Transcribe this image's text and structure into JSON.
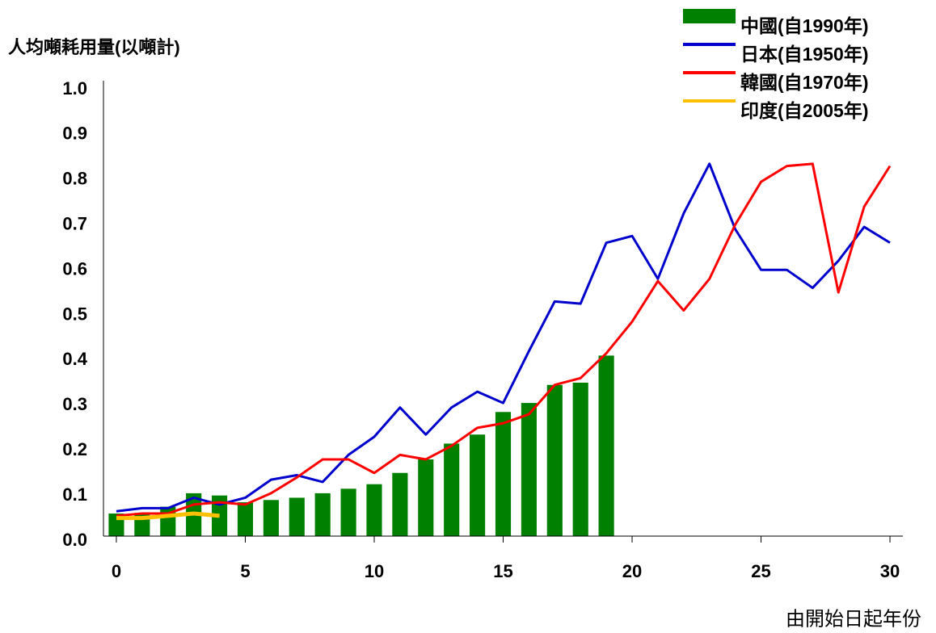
{
  "chart_data": {
    "type": "bar_line",
    "y_label": "人均噸耗用量(以噸計)",
    "x_label": "由開始日起年份",
    "x": [
      0,
      1,
      2,
      3,
      4,
      5,
      6,
      7,
      8,
      9,
      10,
      11,
      12,
      13,
      14,
      15,
      16,
      17,
      18,
      19,
      20,
      21,
      22,
      23,
      24,
      25,
      26,
      27,
      28,
      29,
      30
    ],
    "series": [
      {
        "name": "中國(自1990年)",
        "color": "#008000",
        "kind": "bar",
        "values": [
          0.05,
          0.05,
          0.065,
          0.095,
          0.09,
          0.075,
          0.08,
          0.085,
          0.095,
          0.105,
          0.115,
          0.14,
          0.17,
          0.205,
          0.225,
          0.275,
          0.295,
          0.335,
          0.34,
          0.4,
          null,
          null,
          null,
          null,
          null,
          null,
          null,
          null,
          null,
          null,
          null
        ]
      },
      {
        "name": "日本(自1950年)",
        "color": "#0000cc",
        "kind": "line",
        "values": [
          0.055,
          0.062,
          0.062,
          0.085,
          0.07,
          0.085,
          0.125,
          0.135,
          0.12,
          0.18,
          0.22,
          0.285,
          0.225,
          0.285,
          0.32,
          0.295,
          0.41,
          0.52,
          0.515,
          0.65,
          0.665,
          0.57,
          0.715,
          0.825,
          0.68,
          0.59,
          0.59,
          0.55,
          0.61,
          0.685,
          0.65
        ]
      },
      {
        "name": "韓國(自1970年)",
        "color": "#ff0000",
        "kind": "line",
        "values": [
          0.045,
          0.05,
          0.05,
          0.07,
          0.075,
          0.07,
          0.095,
          0.13,
          0.17,
          0.17,
          0.14,
          0.18,
          0.17,
          0.2,
          0.24,
          0.25,
          0.27,
          0.335,
          0.35,
          0.405,
          0.475,
          0.565,
          0.5,
          0.57,
          0.69,
          0.785,
          0.82,
          0.825,
          0.54,
          0.73,
          0.82
        ]
      },
      {
        "name": "印度(自2005年)",
        "color": "#ffc000",
        "kind": "line",
        "values": [
          0.04,
          0.04,
          0.045,
          0.05,
          0.045,
          null,
          null,
          null,
          null,
          null,
          null,
          null,
          null,
          null,
          null,
          null,
          null,
          null,
          null,
          null,
          null,
          null,
          null,
          null,
          null,
          null,
          null,
          null,
          null,
          null,
          null
        ]
      }
    ],
    "xlim": [
      -0.5,
      30.5
    ],
    "xticks": [
      0,
      5,
      10,
      15,
      20,
      25,
      30
    ],
    "ylim": [
      0,
      1
    ],
    "yticks": [
      {
        "value": 0,
        "label": "0.0"
      },
      {
        "value": 0.1,
        "label": "0.1"
      },
      {
        "value": 0.2,
        "label": "0.2"
      },
      {
        "value": 0.3,
        "label": "0.3"
      },
      {
        "value": 0.4,
        "label": "0.4"
      },
      {
        "value": 0.5,
        "label": "0.5"
      },
      {
        "value": 0.6,
        "label": "0.6"
      },
      {
        "value": 0.7,
        "label": "0.7"
      },
      {
        "value": 0.8,
        "label": "0.8"
      },
      {
        "value": 0.9,
        "label": "0.9"
      },
      {
        "value": 1,
        "label": "1.0"
      }
    ],
    "grid": false,
    "legend": "top-right"
  }
}
